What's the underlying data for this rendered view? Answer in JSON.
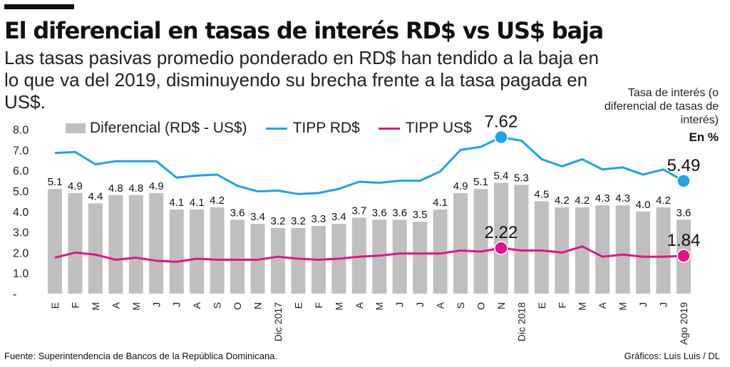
{
  "title": "El diferencial en tasas de interés RD$ vs US$ baja",
  "subtitle": "Las tasas pasivas promedio ponderado en RD$ han tendido a la baja en lo que va del 2019, disminuyendo su brecha frente a la tasa pagada en US$.",
  "unit_note": "Tasa de interés (o diferencial de tasas de interés)",
  "unit_label": "En %",
  "source": "Fuente: Superintendencia de Bancos de la República Dominicana.",
  "credit": "Gráficos: Luis Luis / DL",
  "colors": {
    "bar": "#bfbfbf",
    "rd": "#1ba7e3",
    "us": "#e3138c"
  },
  "chart_data": {
    "type": "bar",
    "categories": [
      "E",
      "F",
      "M",
      "A",
      "M",
      "J",
      "J",
      "A",
      "S",
      "O",
      "N",
      "Dic 2017",
      "E",
      "F",
      "M",
      "A",
      "M",
      "J",
      "J",
      "A",
      "S",
      "O",
      "N",
      "Dic 2018",
      "E",
      "F",
      "M",
      "A",
      "M",
      "J",
      "J",
      "Ago 2019"
    ],
    "ylim": [
      0,
      8
    ],
    "yticks": [
      "-",
      "1.0",
      "2.0",
      "3.0",
      "4.0",
      "5.0",
      "6.0",
      "7.0",
      "8.0"
    ],
    "series": [
      {
        "name": "Diferencial (RD$ - US$)",
        "type": "bar",
        "values": [
          5.1,
          4.9,
          4.4,
          4.8,
          4.8,
          4.9,
          4.1,
          4.1,
          4.2,
          3.6,
          3.4,
          3.2,
          3.2,
          3.3,
          3.4,
          3.7,
          3.6,
          3.6,
          3.5,
          4.1,
          4.9,
          5.1,
          5.4,
          5.3,
          4.5,
          4.2,
          4.2,
          4.3,
          4.3,
          4.0,
          4.2,
          3.6
        ],
        "labels": [
          "5.1",
          "4.9",
          "4.4",
          "4.8",
          "4.8",
          "4.9",
          "4.1",
          "4.1",
          "4.2",
          "3.6",
          "3.4",
          "3.2",
          "3.2",
          "3.3",
          "3.4",
          "3.7",
          "3.6",
          "3.6",
          "3.5",
          "4.1",
          "4.9",
          "5.1",
          "5.4",
          "5.3",
          "4.5",
          "4.2",
          "4.2",
          "4.3",
          "4.3",
          "4.0",
          "4.2",
          "3.6"
        ]
      },
      {
        "name": "TIPP RD$",
        "type": "line",
        "values": [
          6.85,
          6.9,
          6.3,
          6.45,
          6.45,
          6.45,
          5.65,
          5.75,
          5.8,
          5.25,
          4.98,
          5.02,
          4.85,
          4.9,
          5.1,
          5.45,
          5.4,
          5.5,
          5.5,
          5.95,
          7.0,
          7.15,
          7.62,
          7.45,
          6.55,
          6.2,
          6.55,
          6.05,
          6.15,
          5.8,
          6.05,
          5.49
        ]
      },
      {
        "name": "TIPP US$",
        "type": "line",
        "values": [
          1.75,
          2.0,
          1.9,
          1.65,
          1.75,
          1.6,
          1.55,
          1.7,
          1.65,
          1.65,
          1.65,
          1.8,
          1.7,
          1.65,
          1.7,
          1.8,
          1.85,
          1.95,
          1.95,
          1.95,
          2.1,
          2.05,
          2.22,
          2.1,
          2.1,
          2.0,
          2.3,
          1.8,
          1.9,
          1.8,
          1.8,
          1.84
        ]
      }
    ],
    "callouts": [
      {
        "series": 1,
        "index": 22,
        "text": "7.62"
      },
      {
        "series": 1,
        "index": 31,
        "text": "5.49"
      },
      {
        "series": 2,
        "index": 22,
        "text": "2.22"
      },
      {
        "series": 2,
        "index": 31,
        "text": "1.84"
      }
    ]
  }
}
